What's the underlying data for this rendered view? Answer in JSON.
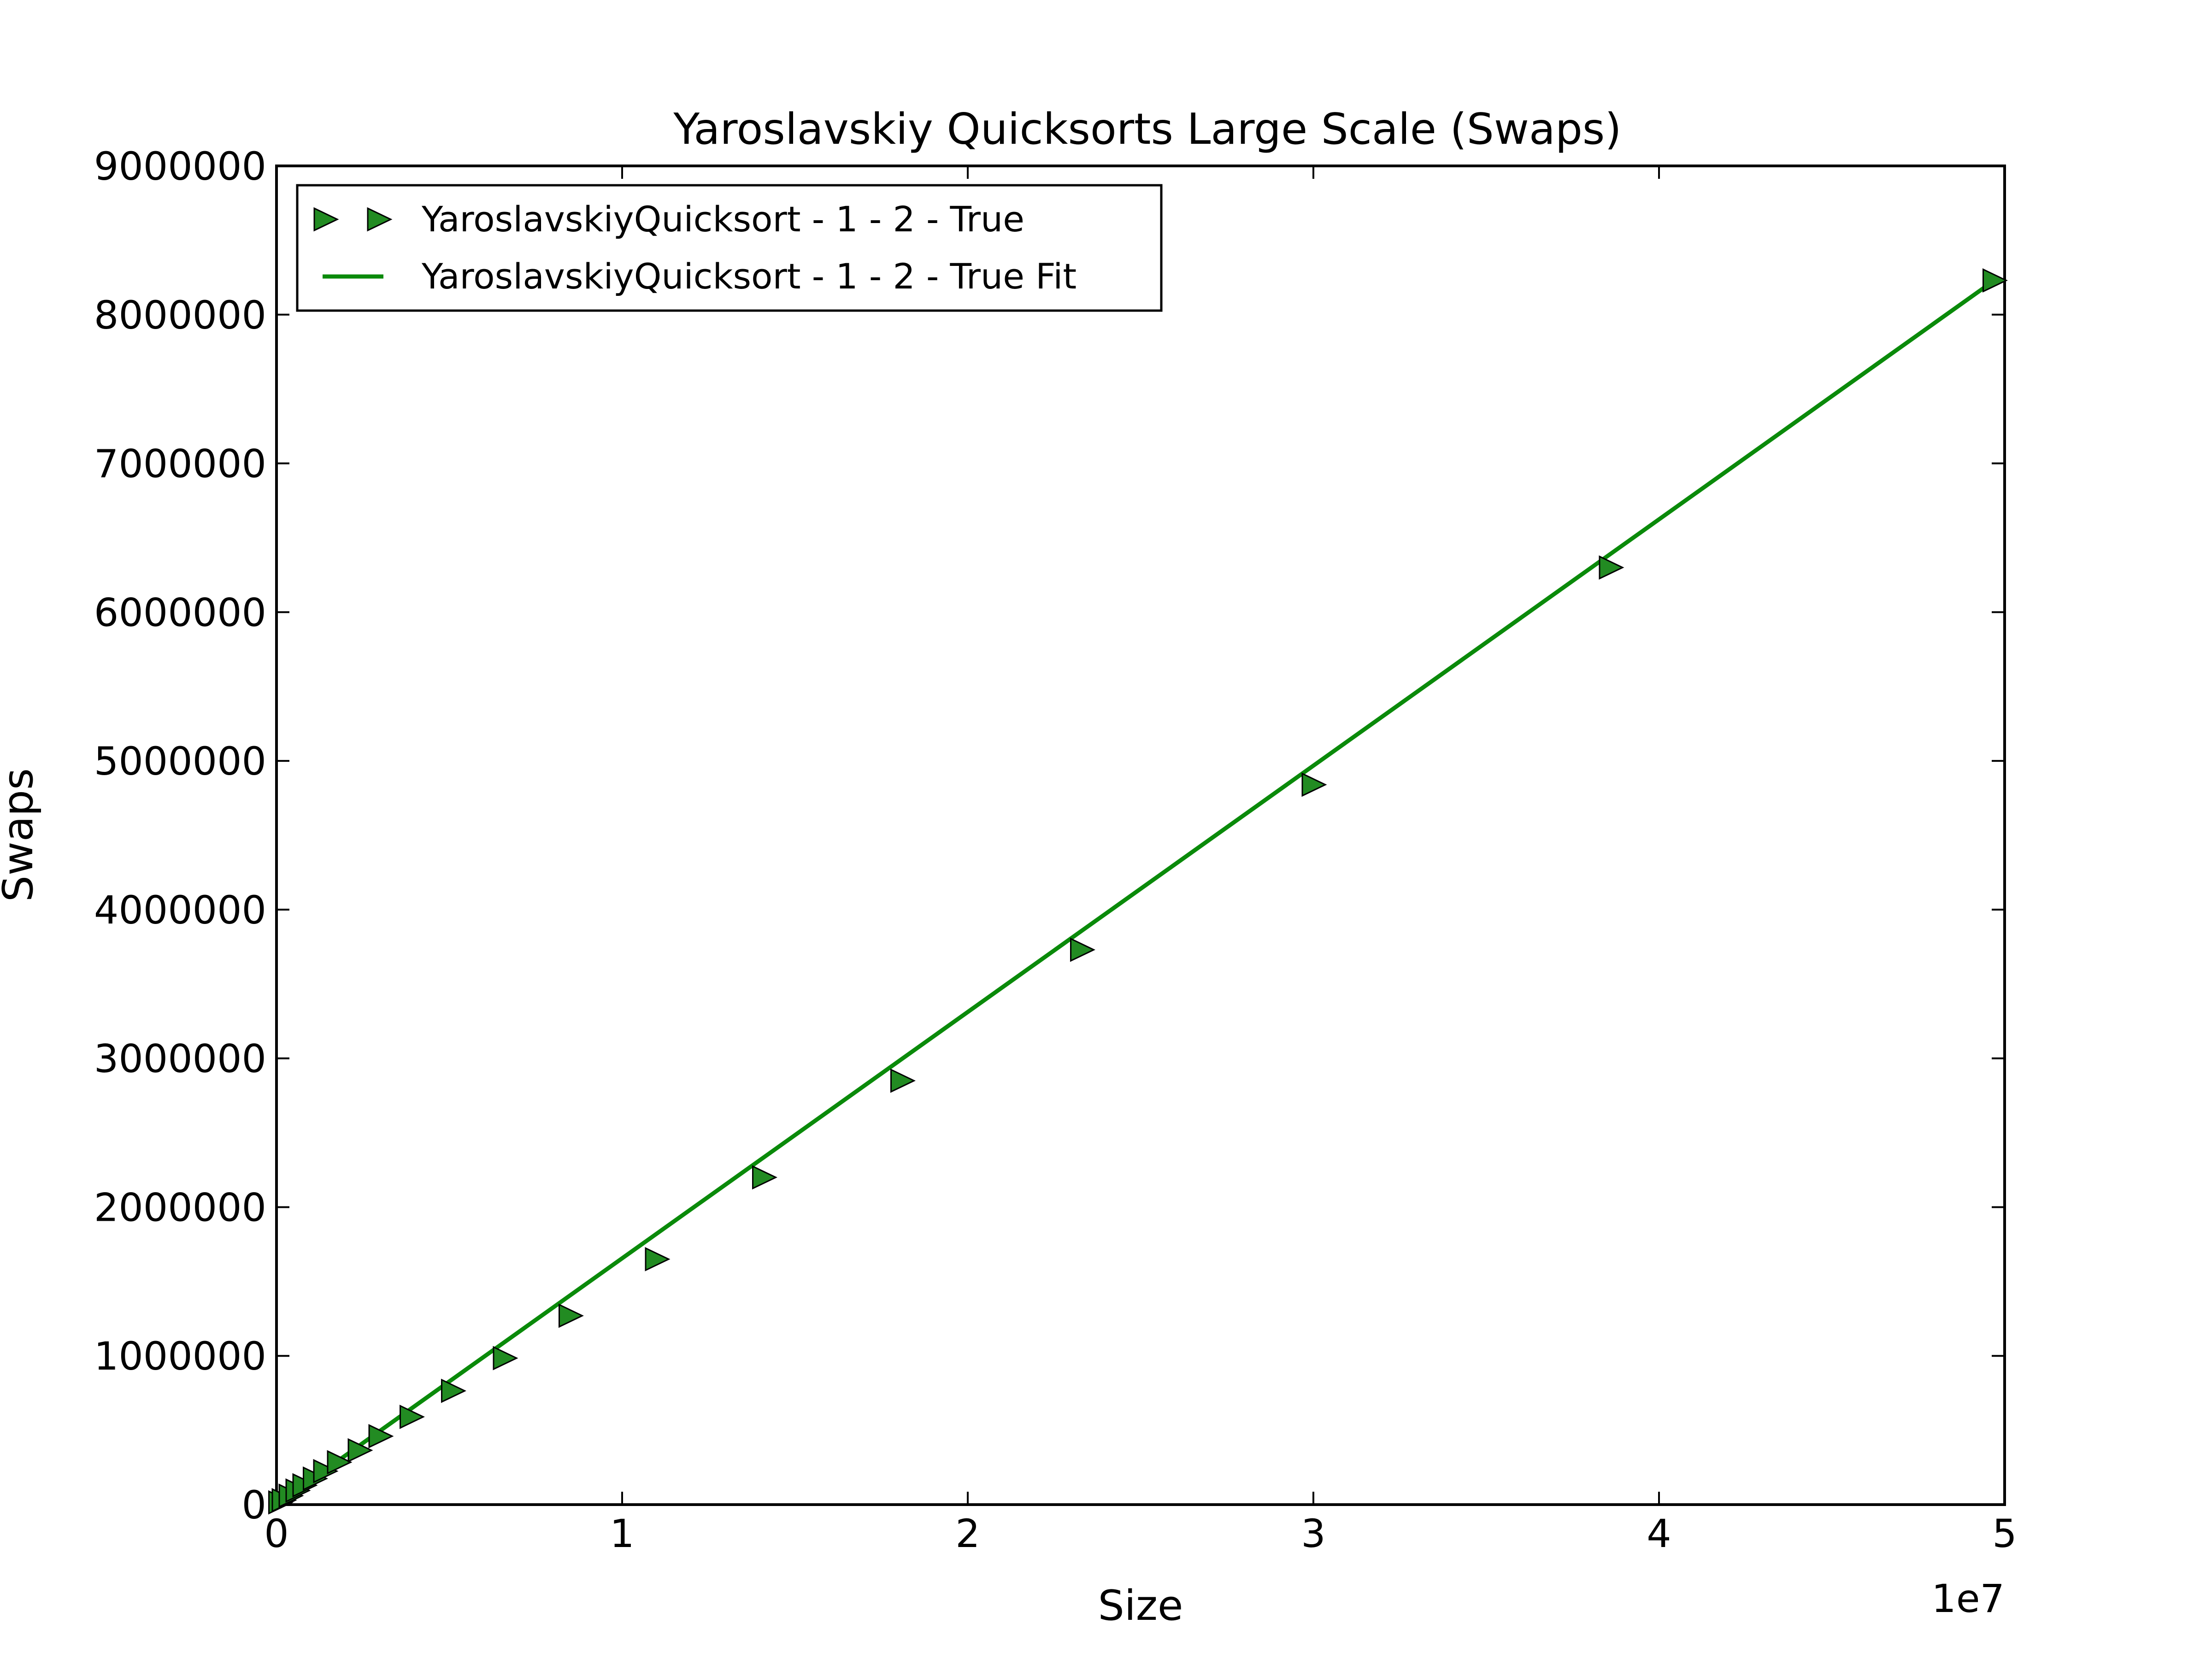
{
  "chart_data": {
    "type": "scatter",
    "title": "Yaroslavskiy Quicksorts Large Scale (Swaps)",
    "xlabel": "Size",
    "ylabel": "Swaps",
    "x_offset_label": "1e7",
    "xlim": [
      0,
      50000000
    ],
    "ylim": [
      0,
      9000000
    ],
    "x_ticks": [
      0,
      10000000,
      20000000,
      30000000,
      40000000,
      50000000
    ],
    "x_tick_labels": [
      "0",
      "1",
      "2",
      "3",
      "4",
      "5"
    ],
    "y_ticks": [
      0,
      1000000,
      2000000,
      3000000,
      4000000,
      5000000,
      6000000,
      7000000,
      8000000,
      9000000
    ],
    "y_tick_labels": [
      "0",
      "1000000",
      "2000000",
      "3000000",
      "4000000",
      "5000000",
      "6000000",
      "7000000",
      "8000000",
      "9000000"
    ],
    "grid": false,
    "legend_position": "top-left",
    "series": [
      {
        "name": "YaroslavskiyQuicksort - 1 - 2 - True",
        "kind": "marker",
        "marker": "triangle-right",
        "color": "#228B22",
        "x": [
          100000,
          200000,
          400000,
          600000,
          800000,
          1100000,
          1400000,
          1800000,
          2400000,
          3000000,
          3900000,
          5100000,
          6600000,
          8500000,
          11000000,
          14100000,
          18100000,
          23300000,
          30000000,
          38600000,
          49700000
        ],
        "y": [
          15000,
          30000,
          60000,
          95000,
          130000,
          175000,
          225000,
          285000,
          365000,
          460000,
          590000,
          765000,
          985000,
          1270000,
          1650000,
          2200000,
          2850000,
          3730000,
          4840000,
          6300000,
          8230000
        ]
      },
      {
        "name": "YaroslavskiyQuicksort - 1 - 2 - True Fit",
        "kind": "line",
        "color": "#0a8a0a",
        "x": [
          0,
          49700000
        ],
        "y": [
          0,
          8230000
        ]
      }
    ]
  }
}
